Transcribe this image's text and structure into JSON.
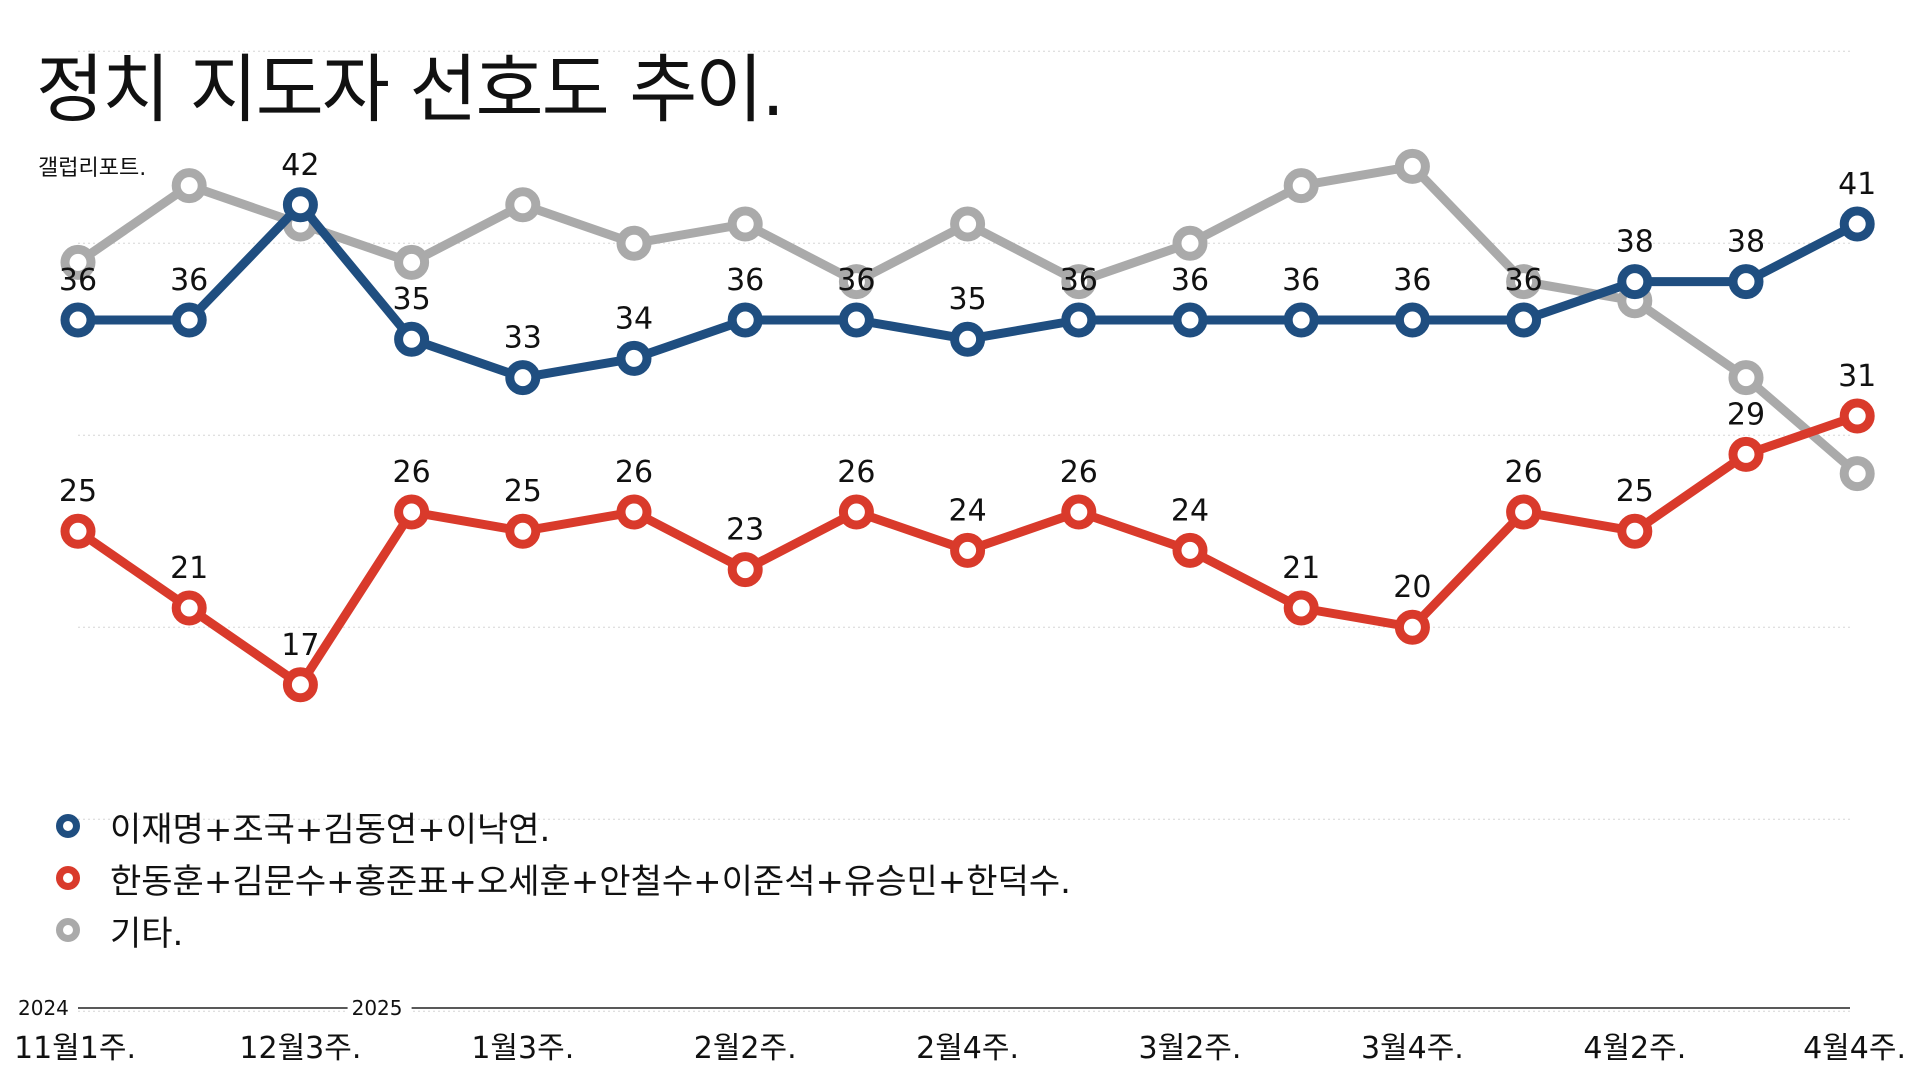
{
  "title": "정치 지도자 선호도 추이.",
  "source": "갤럽리포트.",
  "colors": {
    "series_1": "#1f4e80",
    "series_2": "#d93a2b",
    "series_3": "#aaaaaa"
  },
  "legend": [
    {
      "label": "이재명+조국+김동연+이낙연.",
      "color": "#1f4e80"
    },
    {
      "label": "한동훈+김문수+홍준표+오세훈+안철수+이준석+유승민+한덕수.",
      "color": "#d93a2b"
    },
    {
      "label": "기타.",
      "color": "#aaaaaa"
    }
  ],
  "chart_data": {
    "type": "line",
    "title": "정치 지도자 선호도 추이.",
    "ylim": [
      0,
      50
    ],
    "grid": true,
    "legend_position": "bottom-left",
    "year_labels": [
      {
        "label": "2024",
        "index": 0
      },
      {
        "label": "2025",
        "index": 3
      }
    ],
    "x_tick_labels": [
      {
        "label": "11월1주.",
        "index": 0
      },
      {
        "label": "12월3주.",
        "index": 2
      },
      {
        "label": "1월3주.",
        "index": 4
      },
      {
        "label": "2월2주.",
        "index": 6
      },
      {
        "label": "2월4주.",
        "index": 8
      },
      {
        "label": "3월2주.",
        "index": 10
      },
      {
        "label": "3월4주.",
        "index": 12
      },
      {
        "label": "4월2주.",
        "index": 14
      },
      {
        "label": "4월4주.",
        "index": 16
      }
    ],
    "series": [
      {
        "name": "이재명+조국+김동연+이낙연.",
        "color": "#1f4e80",
        "labels": true,
        "values": [
          36,
          36,
          42,
          35,
          33,
          34,
          36,
          36,
          35,
          36,
          36,
          36,
          36,
          36,
          38,
          38,
          41
        ]
      },
      {
        "name": "한동훈+김문수+홍준표+오세훈+안철수+이준석+유승민+한덕수.",
        "color": "#d93a2b",
        "labels": true,
        "values": [
          25,
          21,
          17,
          26,
          25,
          26,
          23,
          26,
          24,
          26,
          24,
          21,
          20,
          26,
          25,
          29,
          31
        ]
      },
      {
        "name": "기타.",
        "color": "#aaaaaa",
        "labels": false,
        "values": [
          39,
          43,
          41,
          39,
          42,
          40,
          41,
          38,
          41,
          38,
          40,
          43,
          44,
          38,
          37,
          33,
          28
        ]
      }
    ]
  }
}
